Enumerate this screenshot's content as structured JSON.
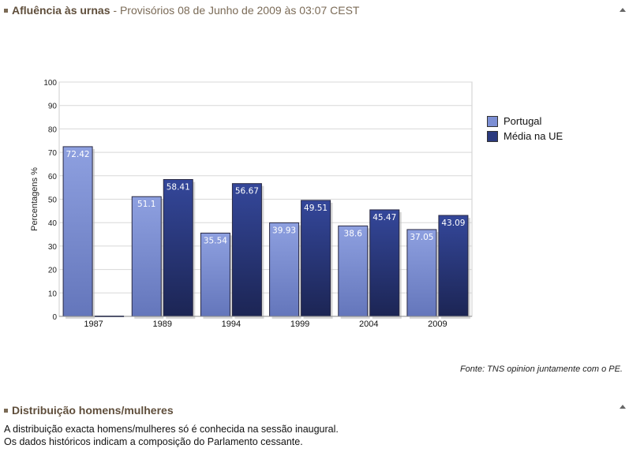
{
  "header1": {
    "title": "Afluência às urnas",
    "subtitle": " - Provisórios 08 de Junho de 2009 às 03:07 CEST"
  },
  "header2": {
    "title": "Distribuição homens/mulheres"
  },
  "source_note": "Fonte: TNS opinion juntamente com o PE.",
  "body_text": {
    "line1": "A distribuição exacta homens/mulheres só é conhecida na sessão inaugural.",
    "line2": "Os dados históricos indicam a composição do Parlamento cessante."
  },
  "colors": {
    "portugal": "#7c8fd4",
    "eu": "#2b3a7e"
  },
  "chart_data": {
    "type": "bar",
    "ylabel": "Percentagens %",
    "ylim": [
      0,
      100
    ],
    "yticks": [
      0,
      10,
      20,
      30,
      40,
      50,
      60,
      70,
      80,
      90,
      100
    ],
    "grid": true,
    "legend_position": "right",
    "categories": [
      "1987",
      "1989",
      "1994",
      "1999",
      "2004",
      "2009"
    ],
    "series": [
      {
        "name": "Portugal",
        "values": [
          72.42,
          51.1,
          35.54,
          39.93,
          38.6,
          37.05
        ],
        "labels": [
          "72.42",
          "51.1",
          "35.54",
          "39.93",
          "38.6",
          "37.05"
        ]
      },
      {
        "name": "Média na UE",
        "values": [
          null,
          58.41,
          56.67,
          49.51,
          45.47,
          43.09
        ],
        "labels": [
          "",
          "58.41",
          "56.67",
          "49.51",
          "45.47",
          "43.09"
        ]
      }
    ]
  }
}
